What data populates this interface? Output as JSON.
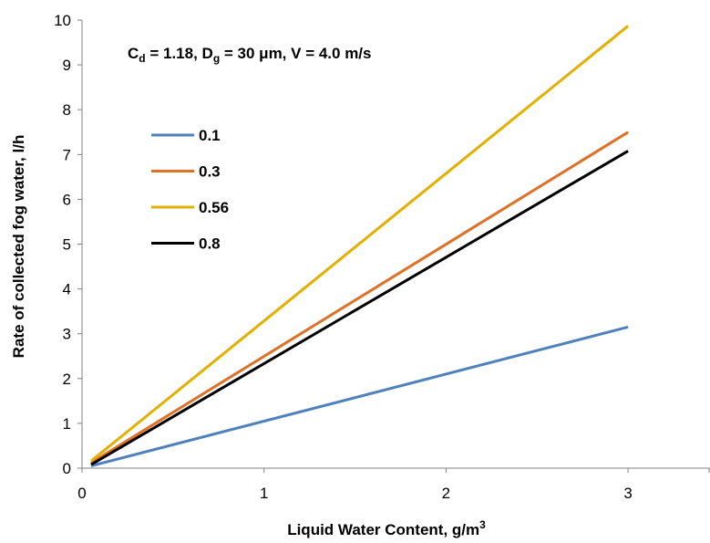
{
  "chart_data": {
    "type": "line",
    "title": "",
    "xlabel": "Liquid Water Content, g/m³",
    "xlabel_main": "Liquid Water Content, g/m",
    "xlabel_sup": "3",
    "ylabel": "Rate of collected fog water, l/h",
    "xlim": [
      0,
      3.45
    ],
    "ylim": [
      0,
      10
    ],
    "xticks": [
      0,
      1,
      2,
      3
    ],
    "yticks": [
      0,
      1,
      2,
      3,
      4,
      5,
      6,
      7,
      8,
      9,
      10
    ],
    "xtick_labels": [
      "0",
      "1",
      "2",
      "3"
    ],
    "ytick_labels": [
      "0",
      "1",
      "2",
      "3",
      "4",
      "5",
      "6",
      "7",
      "8",
      "9",
      "10"
    ],
    "grid": false,
    "legend_position": "upper-left",
    "annotation": {
      "text": "Cd = 1.18, Dg = 30 μm, V = 4.0 m/s",
      "parts": [
        "C",
        "d",
        " = 1.18, D",
        "g",
        " = 30 μm, V = 4.0 m/s"
      ]
    },
    "series": [
      {
        "name": "0.1",
        "color": "#4f81bd",
        "x": [
          0.05,
          3.0
        ],
        "y": [
          0.05,
          3.15
        ]
      },
      {
        "name": "0.3",
        "color": "#e07026",
        "x": [
          0.05,
          3.0
        ],
        "y": [
          0.12,
          7.5
        ]
      },
      {
        "name": "0.56",
        "color": "#e3b000",
        "x": [
          0.05,
          3.0
        ],
        "y": [
          0.16,
          9.87
        ]
      },
      {
        "name": "0.8",
        "color": "#000000",
        "x": [
          0.05,
          3.0
        ],
        "y": [
          0.08,
          7.08
        ]
      }
    ]
  }
}
